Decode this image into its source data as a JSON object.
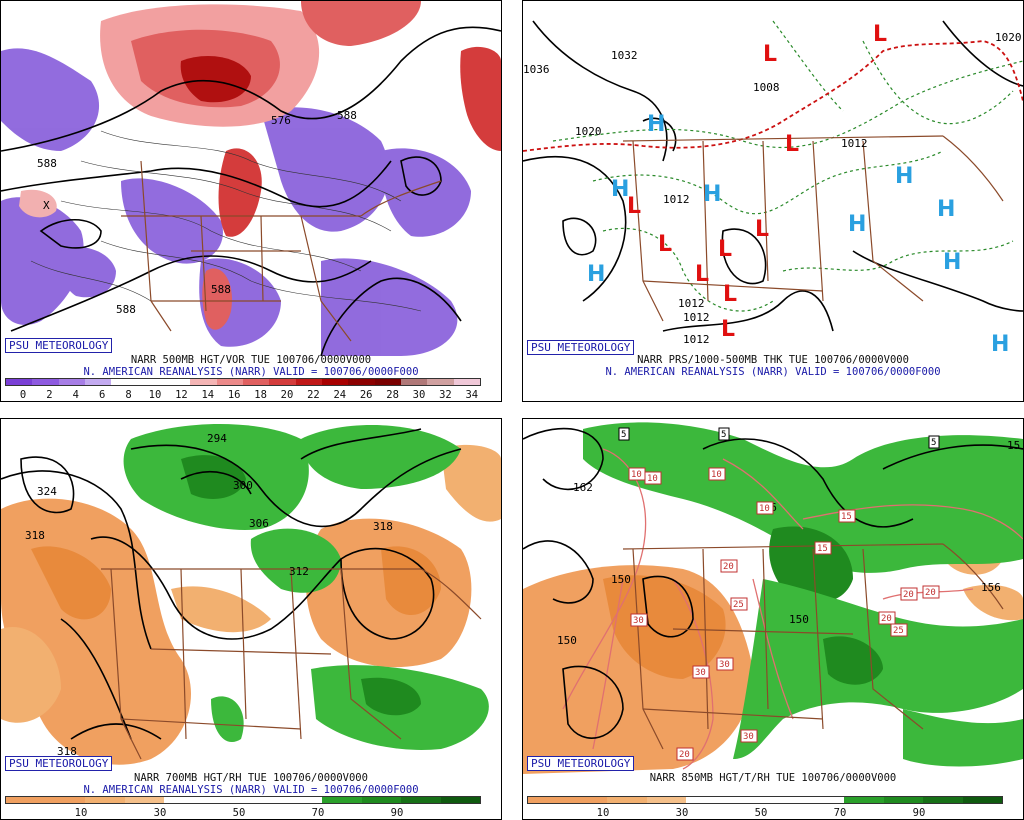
{
  "badge": "PSU METEOROLOGY",
  "panels": {
    "p1": {
      "title": "NARR 500MB HGT/VOR TUE 100706/0000V000",
      "subtitle": "N. AMERICAN REANALYSIS (NARR) VALID = 100706/0000F000",
      "ticks": [
        "0",
        "2",
        "4",
        "6",
        "8",
        "10",
        "12",
        "14",
        "16",
        "18",
        "20",
        "22",
        "24",
        "26",
        "28",
        "30",
        "32",
        "34"
      ],
      "contour_labels": [
        "588",
        "588",
        "588",
        "576",
        "588",
        "X"
      ]
    },
    "p2": {
      "title": "NARR PRS/1000-500MB THK TUE 100706/0000V000",
      "subtitle": "N. AMERICAN REANALYSIS (NARR) VALID = 100706/0000F000",
      "contour_labels": [
        "1036",
        "1032",
        "1020",
        "1008",
        "1012",
        "1012",
        "1012",
        "1012",
        "1012",
        "1020"
      ]
    },
    "p3": {
      "title": "NARR 700MB HGT/RH TUE 100706/0000V000",
      "subtitle": "N. AMERICAN REANALYSIS (NARR) VALID = 100706/0000F000",
      "ticks": [
        "10",
        "30",
        "50",
        "70",
        "90"
      ],
      "contour_labels": [
        "324",
        "318",
        "300",
        "306",
        "312",
        "318",
        "318",
        "294"
      ]
    },
    "p4": {
      "title": "NARR 850MB HGT/T/RH TUE 100706/0000V000",
      "ticks": [
        "10",
        "30",
        "50",
        "70",
        "90"
      ],
      "contour_labels": [
        "162",
        "150",
        "150",
        "156",
        "156",
        "150",
        "15"
      ],
      "boxed_labels": [
        "5",
        "5",
        "5",
        "10",
        "10",
        "10",
        "10",
        "15",
        "15",
        "20",
        "20",
        "20",
        "20",
        "20",
        "25",
        "25",
        "30",
        "30",
        "30",
        "30"
      ]
    }
  },
  "colors": {
    "vort_scale": [
      "#7a3fd6",
      "#8e5ae0",
      "#a77ee6",
      "#c3aaf0",
      "#ffffff",
      "#ffffff",
      "#ffffff",
      "#f4b5b5",
      "#ec8a8a",
      "#e06060",
      "#d43c3c",
      "#c01818",
      "#a80000",
      "#8c0000",
      "#7a0000",
      "#b07878",
      "#d0a0a0",
      "#f0c8d8"
    ],
    "rh_scale": [
      "#f0a060",
      "#f0a060",
      "#f2b070",
      "#f5c08a",
      "#ffffff",
      "#ffffff",
      "#ffffff",
      "#ffffff",
      "#2aa02a",
      "#1f8a1f",
      "#177017",
      "#0f5a0f"
    ],
    "high_symbol": "#2aa0e0",
    "low_symbol": "#e01010",
    "border_color": "#8b4a2a"
  }
}
